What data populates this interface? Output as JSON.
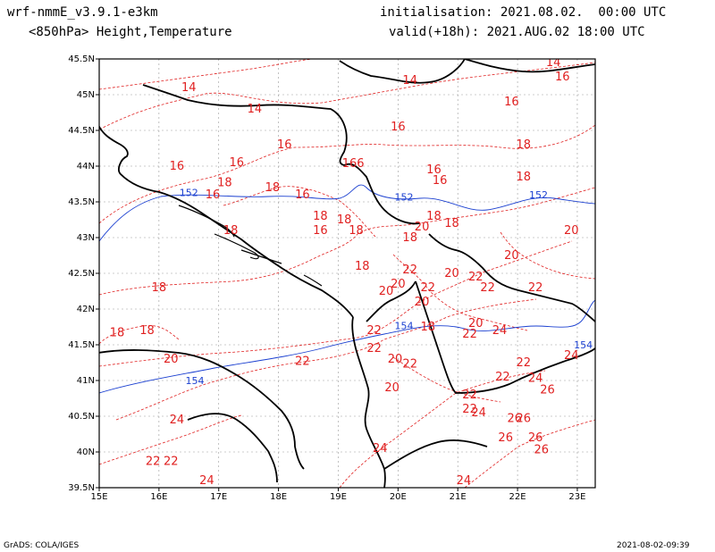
{
  "header": {
    "model": "wrf-nmmE_v3.9.1-e3km",
    "field": "<850hPa> Height,Temperature",
    "init": "initialisation: 2021.08.02.  00:00 UTC",
    "valid": "valid(+18h): 2021.AUG.02 18:00 UTC"
  },
  "footer": {
    "left": "GrADS: COLA/IGES",
    "right": "2021-08-02-09:39"
  },
  "map": {
    "lon_range": [
      15,
      23.3
    ],
    "lat_range": [
      39.5,
      45.5
    ],
    "lon_ticks": [
      "15E",
      "16E",
      "17E",
      "18E",
      "19E",
      "20E",
      "21E",
      "22E",
      "23E"
    ],
    "lat_ticks": [
      "39.5N",
      "40N",
      "40.5N",
      "41N",
      "41.5N",
      "42N",
      "42.5N",
      "43N",
      "43.5N",
      "44N",
      "44.5N",
      "45N",
      "45.5N"
    ],
    "temperature_color": "#e02020",
    "height_color": "#1a3fd0",
    "coast_color": "#000000",
    "temperature_labels": [
      {
        "v": "14",
        "lon": 16.5,
        "lat": 45.05
      },
      {
        "v": "14",
        "lon": 17.6,
        "lat": 44.75
      },
      {
        "v": "14",
        "lon": 20.2,
        "lat": 45.15
      },
      {
        "v": "14",
        "lon": 22.6,
        "lat": 45.4
      },
      {
        "v": "16",
        "lon": 22.75,
        "lat": 45.2
      },
      {
        "v": "16",
        "lon": 21.9,
        "lat": 44.85
      },
      {
        "v": "16",
        "lon": 20.0,
        "lat": 44.5
      },
      {
        "v": "16",
        "lon": 18.1,
        "lat": 44.25
      },
      {
        "v": "16",
        "lon": 17.3,
        "lat": 44.0
      },
      {
        "v": "16",
        "lon": 16.3,
        "lat": 43.95
      },
      {
        "v": "166",
        "lon": 19.25,
        "lat": 43.99
      },
      {
        "v": "16",
        "lon": 20.6,
        "lat": 43.9
      },
      {
        "v": "16",
        "lon": 20.7,
        "lat": 43.75
      },
      {
        "v": "18",
        "lon": 22.1,
        "lat": 44.25
      },
      {
        "v": "18",
        "lon": 22.1,
        "lat": 43.8
      },
      {
        "v": "18",
        "lon": 17.1,
        "lat": 43.72
      },
      {
        "v": "18",
        "lon": 17.9,
        "lat": 43.65
      },
      {
        "v": "16",
        "lon": 16.9,
        "lat": 43.55
      },
      {
        "v": "16",
        "lon": 18.4,
        "lat": 43.55
      },
      {
        "v": "18",
        "lon": 18.7,
        "lat": 43.25
      },
      {
        "v": "18",
        "lon": 19.1,
        "lat": 43.2
      },
      {
        "v": "16",
        "lon": 18.7,
        "lat": 43.05
      },
      {
        "v": "18",
        "lon": 19.3,
        "lat": 43.05
      },
      {
        "v": "18",
        "lon": 17.2,
        "lat": 43.05
      },
      {
        "v": "18",
        "lon": 20.6,
        "lat": 43.25
      },
      {
        "v": "18",
        "lon": 20.9,
        "lat": 43.15
      },
      {
        "v": "18",
        "lon": 20.2,
        "lat": 42.95
      },
      {
        "v": "20",
        "lon": 20.4,
        "lat": 43.1
      },
      {
        "v": "20",
        "lon": 22.9,
        "lat": 43.05
      },
      {
        "v": "20",
        "lon": 21.9,
        "lat": 42.7
      },
      {
        "v": "18",
        "lon": 19.4,
        "lat": 42.55
      },
      {
        "v": "22",
        "lon": 20.2,
        "lat": 42.5
      },
      {
        "v": "20",
        "lon": 20.9,
        "lat": 42.45
      },
      {
        "v": "22",
        "lon": 21.3,
        "lat": 42.4
      },
      {
        "v": "20",
        "lon": 20.0,
        "lat": 42.3
      },
      {
        "v": "22",
        "lon": 20.5,
        "lat": 42.25
      },
      {
        "v": "22",
        "lon": 21.5,
        "lat": 42.25
      },
      {
        "v": "20",
        "lon": 19.8,
        "lat": 42.2
      },
      {
        "v": "22",
        "lon": 22.3,
        "lat": 42.25
      },
      {
        "v": "18",
        "lon": 16.0,
        "lat": 42.25
      },
      {
        "v": "20",
        "lon": 20.4,
        "lat": 42.05
      },
      {
        "v": "20",
        "lon": 21.3,
        "lat": 41.75
      },
      {
        "v": "18",
        "lon": 20.5,
        "lat": 41.7
      },
      {
        "v": "24",
        "lon": 21.7,
        "lat": 41.65
      },
      {
        "v": "22",
        "lon": 21.2,
        "lat": 41.6
      },
      {
        "v": "18",
        "lon": 15.3,
        "lat": 41.62
      },
      {
        "v": "18",
        "lon": 15.8,
        "lat": 41.65
      },
      {
        "v": "22",
        "lon": 19.6,
        "lat": 41.65
      },
      {
        "v": "22",
        "lon": 19.6,
        "lat": 41.4
      },
      {
        "v": "22",
        "lon": 18.4,
        "lat": 41.22
      },
      {
        "v": "20",
        "lon": 16.2,
        "lat": 41.25
      },
      {
        "v": "20",
        "lon": 19.95,
        "lat": 41.25
      },
      {
        "v": "22",
        "lon": 20.2,
        "lat": 41.18
      },
      {
        "v": "24",
        "lon": 22.9,
        "lat": 41.3
      },
      {
        "v": "22",
        "lon": 22.1,
        "lat": 41.2
      },
      {
        "v": "22",
        "lon": 21.75,
        "lat": 41.0
      },
      {
        "v": "24",
        "lon": 22.3,
        "lat": 40.98
      },
      {
        "v": "26",
        "lon": 22.5,
        "lat": 40.82
      },
      {
        "v": "20",
        "lon": 19.9,
        "lat": 40.85
      },
      {
        "v": "22",
        "lon": 21.2,
        "lat": 40.75
      },
      {
        "v": "22",
        "lon": 21.2,
        "lat": 40.55
      },
      {
        "v": "24",
        "lon": 21.35,
        "lat": 40.5
      },
      {
        "v": "26",
        "lon": 21.95,
        "lat": 40.42
      },
      {
        "v": "26",
        "lon": 22.1,
        "lat": 40.42
      },
      {
        "v": "24",
        "lon": 16.3,
        "lat": 40.4
      },
      {
        "v": "26",
        "lon": 21.8,
        "lat": 40.15
      },
      {
        "v": "26",
        "lon": 22.3,
        "lat": 40.15
      },
      {
        "v": "26",
        "lon": 22.4,
        "lat": 39.98
      },
      {
        "v": "24",
        "lon": 19.7,
        "lat": 40.0
      },
      {
        "v": "22",
        "lon": 15.9,
        "lat": 39.82
      },
      {
        "v": "22",
        "lon": 16.2,
        "lat": 39.82
      },
      {
        "v": "24",
        "lon": 16.8,
        "lat": 39.55
      },
      {
        "v": "24",
        "lon": 21.1,
        "lat": 39.55
      }
    ],
    "height_labels": [
      {
        "v": "152",
        "lon": 16.5,
        "lat": 43.58
      },
      {
        "v": "152",
        "lon": 20.1,
        "lat": 43.52
      },
      {
        "v": "152",
        "lon": 22.35,
        "lat": 43.55
      },
      {
        "v": "154",
        "lon": 16.6,
        "lat": 40.95
      },
      {
        "v": "154",
        "lon": 20.1,
        "lat": 41.72
      },
      {
        "v": "154",
        "lon": 23.1,
        "lat": 41.45
      }
    ]
  }
}
